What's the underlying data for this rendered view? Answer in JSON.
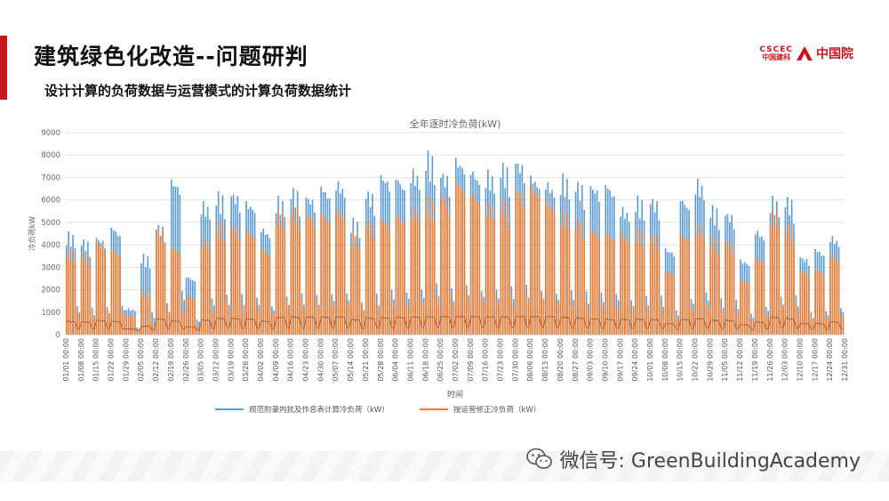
{
  "slide": {
    "title": "建筑绿色化改造--问题研判",
    "subtitle": "设计计算的负荷数据与运营模式的计算负荷数据统计"
  },
  "logo": {
    "en": "CSCEC",
    "cn_small": "中国建科",
    "cn": "中国院",
    "brand_color": "#c8161d"
  },
  "watermark": {
    "icon": "wechat-icon",
    "text": "微信号: GreenBuildingAcademy"
  },
  "chart_data": {
    "type": "bar",
    "title": "全年逐时冷负荷(kW)",
    "xlabel": "时间",
    "ylabel": "冷负荷kW",
    "ylim": [
      0,
      9000
    ],
    "yticks": [
      0,
      1000,
      2000,
      3000,
      4000,
      5000,
      6000,
      7000,
      8000,
      9000
    ],
    "grid": true,
    "legend_position": "bottom",
    "x_ticks": [
      "01/01 00:00",
      "01/08 00:00",
      "01/15 00:00",
      "01/22 00:00",
      "01/29 00:00",
      "02/05 00:00",
      "02/12 00:00",
      "02/19 00:00",
      "02/26 00:00",
      "03/05 00:00",
      "03/12 00:00",
      "03/19 00:00",
      "03/26 00:00",
      "04/02 00:00",
      "04/09 00:00",
      "04/16 00:00",
      "04/23 00:00",
      "04/30 00:00",
      "05/07 00:00",
      "05/14 00:00",
      "05/21 00:00",
      "05/28 00:00",
      "06/04 00:00",
      "06/11 00:00",
      "06/18 00:00",
      "06/25 00:00",
      "07/02 00:00",
      "07/09 00:00",
      "07/16 00:00",
      "07/23 00:00",
      "07/30 00:00",
      "08/06 00:00",
      "08/13 00:00",
      "08/20 00:00",
      "08/27 00:00",
      "09/03 00:00",
      "09/10 00:00",
      "09/17 00:00",
      "09/24 00:00",
      "10/01 00:00",
      "10/08 00:00",
      "10/15 00:00",
      "10/22 00:00",
      "10/29 00:00",
      "11/05 00:00",
      "11/12 00:00",
      "11/19 00:00",
      "11/26 00:00",
      "12/03 00:00",
      "12/10 00:00",
      "12/17 00:00",
      "12/24 00:00",
      "12/31 00:00"
    ],
    "weekly_peaks": {
      "note": "approximate weekly peak load per series, one value per x tick interval",
      "design": [
        4600,
        4300,
        4500,
        5000,
        1200,
        3600,
        5000,
        7200,
        2700,
        6000,
        6400,
        6500,
        6200,
        4900,
        6200,
        6600,
        6400,
        6900,
        7000,
        5200,
        6500,
        7400,
        7300,
        7500,
        8200,
        7400,
        8200,
        7600,
        7400,
        7700,
        8000,
        7400,
        7000,
        7200,
        6900,
        6900,
        7000,
        5800,
        6200,
        6200,
        4000,
        6300,
        7000,
        5800,
        5600,
        3500,
        4800,
        6200,
        6200,
        3600,
        4000,
        4500
      ],
      "revised": [
        3900,
        3700,
        4300,
        4000,
        900,
        2000,
        4800,
        4100,
        1800,
        4400,
        5100,
        5000,
        4900,
        4000,
        5600,
        5800,
        5600,
        5700,
        5800,
        4600,
        5200,
        5400,
        5600,
        5800,
        6200,
        6400,
        7200,
        6600,
        6000,
        6100,
        6700,
        7000,
        6200,
        5600,
        5200,
        4900,
        4800,
        4700,
        4800,
        4600,
        3000,
        4700,
        5000,
        4400,
        4300,
        2600,
        3600,
        5600,
        5000,
        3000,
        3100,
        3700
      ]
    },
    "series": [
      {
        "name": "规范附录内扰及作息表计算冷负荷（kW）",
        "color": "#5b9bd5"
      },
      {
        "name": "按运营修正冷负荷（kW）",
        "color": "#ed7d31"
      }
    ]
  }
}
